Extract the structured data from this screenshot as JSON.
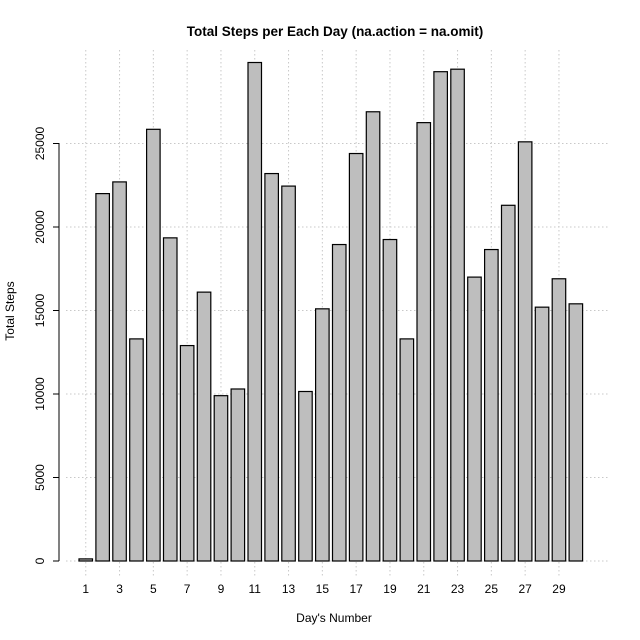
{
  "chart_data": {
    "type": "bar",
    "title": "Total Steps per Each Day (na.action = na.omit)",
    "xlabel": "Day's Number",
    "ylabel": "Total Steps",
    "categories": [
      "1",
      "2",
      "3",
      "4",
      "5",
      "6",
      "7",
      "8",
      "9",
      "10",
      "11",
      "12",
      "13",
      "14",
      "15",
      "16",
      "17",
      "18",
      "19",
      "20",
      "21",
      "22",
      "23",
      "24",
      "25",
      "26",
      "27",
      "28",
      "29",
      "30"
    ],
    "x_tick_labels": [
      "1",
      "3",
      "5",
      "7",
      "9",
      "11",
      "13",
      "15",
      "17",
      "19",
      "21",
      "23",
      "25",
      "27",
      "29"
    ],
    "values": [
      126,
      22000,
      22700,
      13300,
      25850,
      19350,
      12900,
      16100,
      9900,
      10300,
      29850,
      23200,
      22450,
      10150,
      15100,
      18950,
      24400,
      26900,
      19250,
      13300,
      26250,
      29300,
      29450,
      17000,
      18650,
      21300,
      25100,
      15200,
      16900,
      15400
    ],
    "ylim": [
      0,
      30000
    ],
    "y_ticks": [
      0,
      5000,
      10000,
      15000,
      20000,
      25000
    ],
    "y_tick_labels": [
      "0",
      "5000",
      "10000",
      "15000",
      "20000",
      "25000"
    ],
    "grid": true,
    "colors": {
      "bar_fill": "#bebebe",
      "bar_stroke": "#000000",
      "grid": "#c8c8c8"
    }
  }
}
